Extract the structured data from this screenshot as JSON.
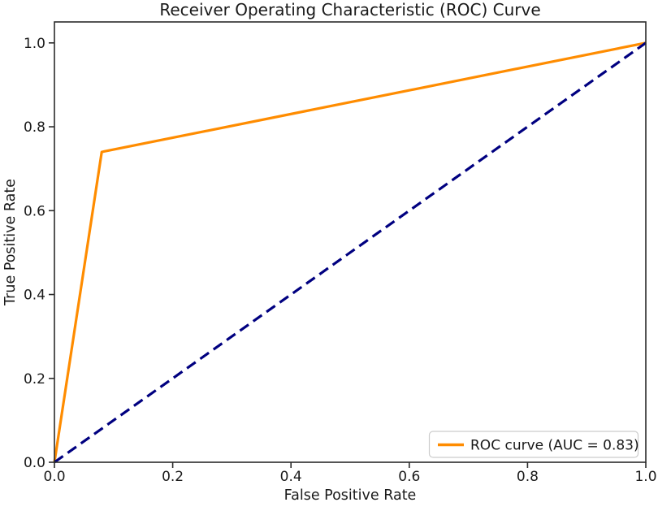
{
  "chart_data": {
    "type": "line",
    "title": "Receiver Operating Characteristic (ROC) Curve",
    "xlabel": "False Positive Rate",
    "ylabel": "True Positive Rate",
    "xlim": [
      0.0,
      1.0
    ],
    "ylim": [
      0.0,
      1.05
    ],
    "xticks": [
      0.0,
      0.2,
      0.4,
      0.6,
      0.8,
      1.0
    ],
    "yticks": [
      0.0,
      0.2,
      0.4,
      0.6,
      0.8,
      1.0
    ],
    "tick_decimals": 1,
    "grid": false,
    "legend": {
      "position": "lower right",
      "entries": [
        {
          "label": "ROC curve (AUC = 0.83)",
          "color": "#ff8c00",
          "style": "solid"
        }
      ]
    },
    "auc": 0.83,
    "series": [
      {
        "name": "ROC curve (AUC = 0.83)",
        "id": "roc-curve",
        "x": [
          0.0,
          0.08,
          1.0
        ],
        "y": [
          0.0,
          0.74,
          1.0
        ],
        "color": "#ff8c00",
        "style": "solid",
        "line_width": 3.2,
        "show_in_legend": true
      },
      {
        "name": "chance-diagonal",
        "id": "chance-diagonal",
        "x": [
          0.0,
          1.0
        ],
        "y": [
          0.0,
          1.0
        ],
        "color": "#000080",
        "style": "dashed",
        "line_width": 3.2,
        "show_in_legend": false
      }
    ]
  },
  "colors": {
    "background": "#ffffff",
    "axis": "#2b2b2b",
    "text": "#1a1a1a",
    "roc_curve": "#ff8c00",
    "chance_line": "#000080",
    "legend_border": "#cccccc",
    "legend_fill": "rgba(255,255,255,0.85)"
  }
}
